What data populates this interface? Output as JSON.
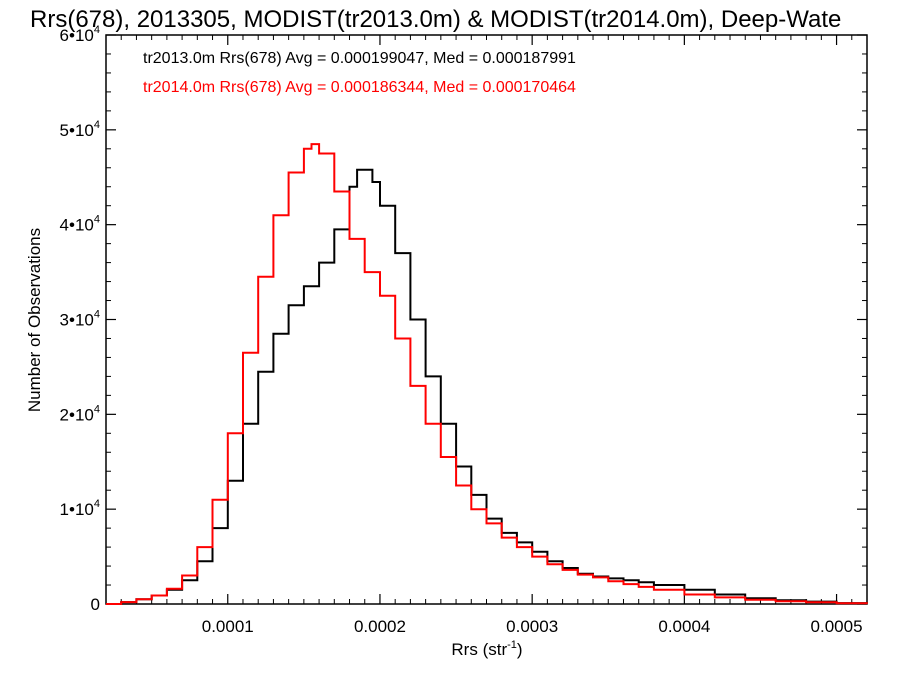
{
  "chart_data": {
    "type": "line",
    "style": "step-histogram",
    "title": "Rrs(678), 2013305, MODIST(tr2013.0m) & MODIST(tr2014.0m), Deep-Wate",
    "xlabel": {
      "base": "Rrs (str",
      "sup": "-1",
      "end": ")"
    },
    "ylabel": "Number of Observations",
    "xlim": [
      2e-05,
      0.00052
    ],
    "ylim": [
      0,
      60000
    ],
    "grid": false,
    "legend_position": "top-left",
    "xticks": [
      {
        "value": 0.0001,
        "label": "0.0001"
      },
      {
        "value": 0.0002,
        "label": "0.0002"
      },
      {
        "value": 0.0003,
        "label": "0.0003"
      },
      {
        "value": 0.0004,
        "label": "0.0004"
      },
      {
        "value": 0.0005,
        "label": "0.0005"
      }
    ],
    "yticks": [
      {
        "value": 0,
        "label": "0",
        "sup": ""
      },
      {
        "value": 10000,
        "label": "1•10",
        "sup": "4"
      },
      {
        "value": 20000,
        "label": "2•10",
        "sup": "4"
      },
      {
        "value": 30000,
        "label": "3•10",
        "sup": "4"
      },
      {
        "value": 40000,
        "label": "4•10",
        "sup": "4"
      },
      {
        "value": 50000,
        "label": "5•10",
        "sup": "4"
      },
      {
        "value": 60000,
        "label": "6•10",
        "sup": "4"
      }
    ],
    "series": [
      {
        "legend": "tr2013.0m Rrs(678) Avg = 0.000199047, Med = 0.000187991",
        "color": "#000000",
        "points": [
          [
            2e-05,
            0
          ],
          [
            3e-05,
            200
          ],
          [
            4e-05,
            500
          ],
          [
            5e-05,
            900
          ],
          [
            6e-05,
            1500
          ],
          [
            7e-05,
            2500
          ],
          [
            8e-05,
            4500
          ],
          [
            9e-05,
            8000
          ],
          [
            0.0001,
            13000
          ],
          [
            0.00011,
            19000
          ],
          [
            0.00012,
            24500
          ],
          [
            0.00013,
            28500
          ],
          [
            0.00014,
            31500
          ],
          [
            0.00015,
            33500
          ],
          [
            0.00016,
            36000
          ],
          [
            0.00017,
            39500
          ],
          [
            0.00018,
            44000
          ],
          [
            0.000185,
            45800
          ],
          [
            0.00019,
            45800
          ],
          [
            0.000195,
            44500
          ],
          [
            0.0002,
            42000
          ],
          [
            0.00021,
            37000
          ],
          [
            0.00022,
            30000
          ],
          [
            0.00023,
            24000
          ],
          [
            0.00024,
            19000
          ],
          [
            0.00025,
            14500
          ],
          [
            0.00026,
            11500
          ],
          [
            0.00027,
            9000
          ],
          [
            0.00028,
            7500
          ],
          [
            0.00029,
            6500
          ],
          [
            0.0003,
            5500
          ],
          [
            0.00031,
            4500
          ],
          [
            0.00032,
            3800
          ],
          [
            0.00033,
            3200
          ],
          [
            0.00034,
            2900
          ],
          [
            0.00035,
            2700
          ],
          [
            0.00036,
            2500
          ],
          [
            0.00037,
            2300
          ],
          [
            0.00038,
            2000
          ],
          [
            0.0004,
            1500
          ],
          [
            0.00042,
            1000
          ],
          [
            0.00044,
            600
          ],
          [
            0.00046,
            400
          ],
          [
            0.00048,
            250
          ],
          [
            0.0005,
            100
          ],
          [
            0.00052,
            50
          ]
        ]
      },
      {
        "legend": "tr2014.0m Rrs(678) Avg = 0.000186344, Med = 0.000170464",
        "color": "#ff0000",
        "points": [
          [
            2e-05,
            0
          ],
          [
            3e-05,
            200
          ],
          [
            4e-05,
            500
          ],
          [
            5e-05,
            900
          ],
          [
            6e-05,
            1600
          ],
          [
            7e-05,
            3000
          ],
          [
            8e-05,
            6000
          ],
          [
            9e-05,
            11000
          ],
          [
            0.0001,
            18000
          ],
          [
            0.00011,
            26500
          ],
          [
            0.00012,
            34500
          ],
          [
            0.00013,
            41000
          ],
          [
            0.00014,
            45500
          ],
          [
            0.00015,
            48000
          ],
          [
            0.000155,
            48500
          ],
          [
            0.00016,
            47500
          ],
          [
            0.00017,
            43500
          ],
          [
            0.00018,
            38500
          ],
          [
            0.00019,
            35000
          ],
          [
            0.0002,
            32500
          ],
          [
            0.00021,
            28000
          ],
          [
            0.00022,
            23000
          ],
          [
            0.00023,
            19000
          ],
          [
            0.00024,
            15500
          ],
          [
            0.00025,
            12500
          ],
          [
            0.00026,
            10000
          ],
          [
            0.00027,
            8500
          ],
          [
            0.00028,
            7000
          ],
          [
            0.00029,
            6000
          ],
          [
            0.0003,
            5000
          ],
          [
            0.00031,
            4200
          ],
          [
            0.00032,
            3600
          ],
          [
            0.00033,
            3100
          ],
          [
            0.00034,
            2800
          ],
          [
            0.00035,
            2400
          ],
          [
            0.00036,
            2100
          ],
          [
            0.00037,
            1800
          ],
          [
            0.00038,
            1500
          ],
          [
            0.0004,
            1000
          ],
          [
            0.00042,
            700
          ],
          [
            0.00044,
            450
          ],
          [
            0.00046,
            300
          ],
          [
            0.00048,
            180
          ],
          [
            0.0005,
            80
          ],
          [
            0.00052,
            30
          ]
        ]
      }
    ]
  }
}
